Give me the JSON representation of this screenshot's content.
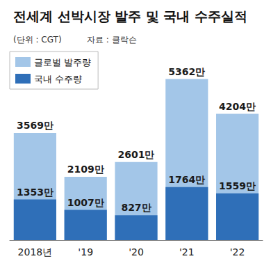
{
  "chart_data": {
    "type": "bar",
    "title": "전세계 선박시장 발주 및 국내 수주실적",
    "subtitle": "(단위 : CGT)",
    "source": "자료 : 클락슨",
    "categories": [
      "2018년",
      "'19",
      "'20",
      "'21",
      "'22"
    ],
    "series": [
      {
        "name": "글로벌 발주량",
        "color": "#a3c6e8",
        "values": [
          3569,
          2109,
          2601,
          5362,
          4204
        ],
        "value_labels": [
          "3569만",
          "2109만",
          "2601만",
          "5362만",
          "4204만"
        ]
      },
      {
        "name": "국내 수주량",
        "color": "#2f6fb8",
        "values": [
          1353,
          1007,
          827,
          1764,
          1559
        ],
        "value_labels": [
          "1353만",
          "1007만",
          "827만",
          "1764만",
          "1559만"
        ]
      }
    ],
    "ylim": [
      0,
      6000
    ],
    "stacked": false,
    "data_labels": true,
    "tick_labels": "x",
    "grid": false,
    "legend": "top-left"
  }
}
